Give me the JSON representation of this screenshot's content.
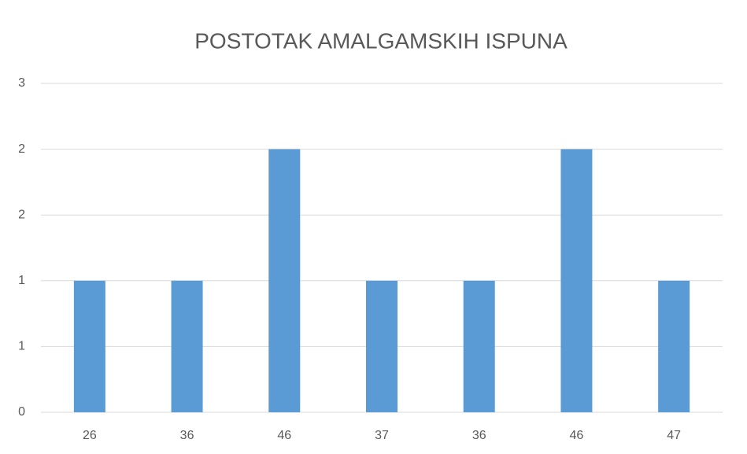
{
  "chart_data": {
    "type": "bar",
    "title": "POSTOTAK AMALGAMSKIH ISPUNA",
    "categories": [
      "26",
      "36",
      "46",
      "37",
      "36",
      "46",
      "47"
    ],
    "values": [
      1,
      1,
      2,
      1,
      1,
      2,
      1
    ],
    "color": "#5b9bd5",
    "ylim": [
      0,
      2.5
    ],
    "yticks": [
      0,
      {
        "value": 0.5,
        "label": "1"
      },
      1,
      {
        "value": 1.5,
        "label": "2"
      },
      2,
      {
        "value": 2.5,
        "label": "3"
      }
    ],
    "grid": true
  }
}
